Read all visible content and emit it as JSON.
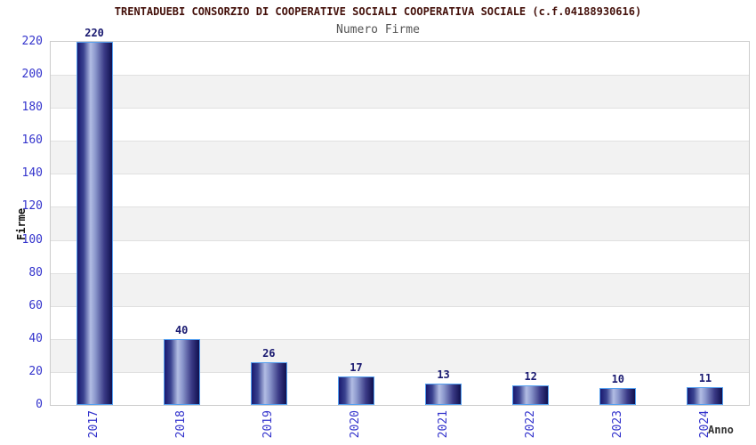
{
  "chart_data": {
    "type": "bar",
    "title": "TRENTADUEBI CONSORZIO DI COOPERATIVE SOCIALI COOPERATIVA SOCIALE (c.f.04188930616)",
    "subtitle": "Numero Firme",
    "xlabel": "Anno",
    "ylabel": "Firme",
    "categories": [
      "2017",
      "2018",
      "2019",
      "2020",
      "2021",
      "2022",
      "2023",
      "2024"
    ],
    "values": [
      220,
      40,
      26,
      17,
      13,
      12,
      10,
      11
    ],
    "ylim": [
      0,
      220
    ],
    "ytick_step": 20,
    "grid": true,
    "legend": "none",
    "colors": {
      "title_color": "#44100a",
      "subtitle_color": "#555555",
      "tick_label_color": "#3333cc",
      "value_label_color": "#191970",
      "bar_dark": "#191970",
      "bar_darker": "#10104e",
      "bar_highlight": "#b2bde4",
      "bar_border": "#55a0f0",
      "band_gray": "#f2f2f2",
      "grid_color": "#e0e0e0",
      "plot_border": "#cccccc"
    }
  }
}
